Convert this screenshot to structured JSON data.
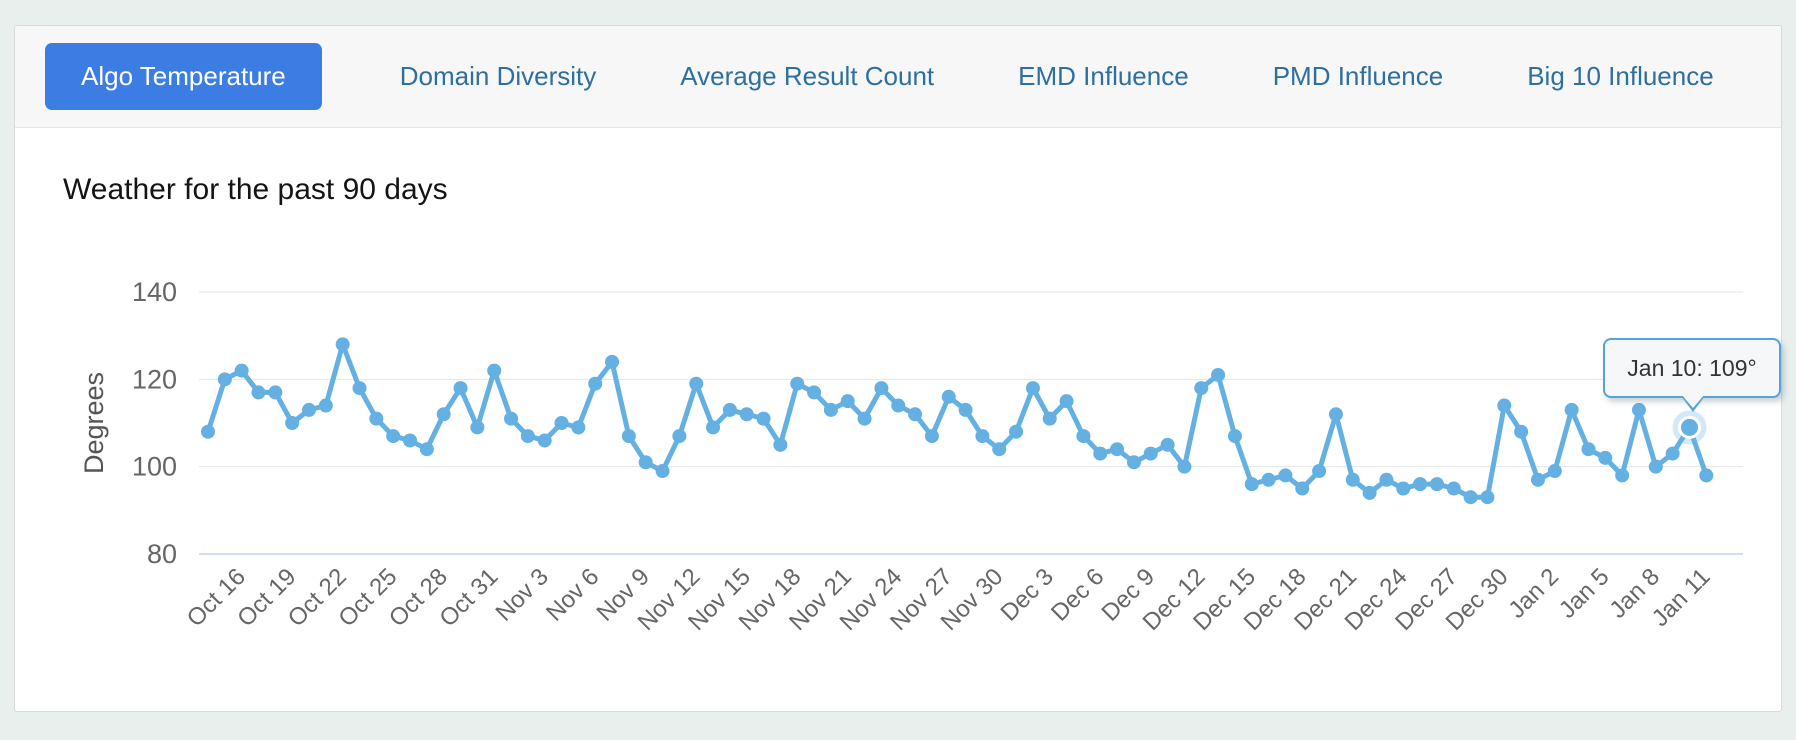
{
  "tabs": {
    "items": [
      {
        "label": "Algo Temperature",
        "active": true
      },
      {
        "label": "Domain Diversity",
        "active": false
      },
      {
        "label": "Average Result Count",
        "active": false
      },
      {
        "label": "EMD Influence",
        "active": false
      },
      {
        "label": "PMD Influence",
        "active": false
      },
      {
        "label": "Big 10 Influence",
        "active": false
      }
    ]
  },
  "chart": {
    "title": "Weather for the past 90 days",
    "tooltip": {
      "text": "Jan 10: 109°"
    }
  },
  "chart_data": {
    "type": "line",
    "title": "Weather for the past 90 days",
    "ylabel": "Degrees",
    "ylim": [
      80,
      140
    ],
    "y_ticks": [
      140,
      120,
      100,
      80
    ],
    "grid": "horizontal",
    "x_tick_labels": [
      "Oct 16",
      "Oct 19",
      "Oct 22",
      "Oct 25",
      "Oct 28",
      "Oct 31",
      "Nov 3",
      "Nov 6",
      "Nov 9",
      "Nov 12",
      "Nov 15",
      "Nov 18",
      "Nov 21",
      "Nov 24",
      "Nov 27",
      "Nov 30",
      "Dec 3",
      "Dec 6",
      "Dec 9",
      "Dec 12",
      "Dec 15",
      "Dec 18",
      "Dec 21",
      "Dec 24",
      "Dec 27",
      "Dec 30",
      "Jan 2",
      "Jan 5",
      "Jan 8",
      "Jan 11"
    ],
    "first_tick_point_index": 2,
    "tick_every_points": 3,
    "values": [
      108,
      120,
      122,
      117,
      117,
      110,
      113,
      114,
      128,
      118,
      111,
      107,
      106,
      104,
      112,
      118,
      109,
      122,
      111,
      107,
      106,
      110,
      109,
      119,
      124,
      107,
      101,
      99,
      107,
      119,
      109,
      113,
      112,
      111,
      105,
      119,
      117,
      113,
      115,
      111,
      118,
      114,
      112,
      107,
      116,
      113,
      107,
      104,
      108,
      118,
      111,
      115,
      107,
      103,
      104,
      101,
      103,
      105,
      100,
      118,
      121,
      107,
      96,
      97,
      98,
      95,
      99,
      112,
      97,
      94,
      97,
      95,
      96,
      96,
      95,
      93,
      93,
      114,
      108,
      97,
      99,
      113,
      104,
      102,
      98,
      113,
      100,
      103,
      109,
      98
    ],
    "highlight_index": 88,
    "highlight_label": "Jan 10: 109°",
    "line_color": "#64b0e2",
    "grid_color": "#e6e6e6",
    "baseline_color": "#c7d4e8",
    "tick_text_color": "#666666"
  }
}
